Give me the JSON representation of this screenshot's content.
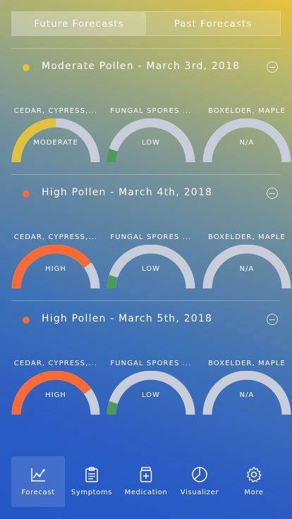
{
  "tabs": {
    "future": "Future Forecasts",
    "past": "Past Forecasts",
    "selected": "future"
  },
  "colors": {
    "moderate": "#e2c13c",
    "high": "#fb6a32",
    "low": "#4e9a5b",
    "track": "#c7ceda"
  },
  "days": [
    {
      "title": "Moderate Pollen - March 3rd, 2018",
      "dot_color": "#e2c13c",
      "gauges": [
        {
          "label": "CEDAR, CYPRESS,...",
          "level": "MODERATE",
          "fraction": 0.5,
          "color": "#e2c13c"
        },
        {
          "label": "FUNGAL SPORES ...",
          "level": "LOW",
          "fraction": 0.1,
          "color": "#4e9a5b"
        },
        {
          "label": "BOXELDER, MAPLE",
          "level": "N/A",
          "fraction": 0,
          "color": "#c7ceda"
        }
      ]
    },
    {
      "title": "High Pollen - March 4th, 2018",
      "dot_color": "#fb6a32",
      "gauges": [
        {
          "label": "CEDAR, CYPRESS,...",
          "level": "HIGH",
          "fraction": 0.8,
          "color": "#fb6a32"
        },
        {
          "label": "FUNGAL SPORES ...",
          "level": "LOW",
          "fraction": 0.1,
          "color": "#4e9a5b"
        },
        {
          "label": "BOXELDER, MAPLE",
          "level": "N/A",
          "fraction": 0,
          "color": "#c7ceda"
        }
      ]
    },
    {
      "title": "High Pollen - March 5th, 2018",
      "dot_color": "#fb6a32",
      "gauges": [
        {
          "label": "CEDAR, CYPRESS,...",
          "level": "HIGH",
          "fraction": 0.8,
          "color": "#fb6a32"
        },
        {
          "label": "FUNGAL SPORES ...",
          "level": "LOW",
          "fraction": 0.1,
          "color": "#4e9a5b"
        },
        {
          "label": "BOXELDER, MAPLE",
          "level": "N/A",
          "fraction": 0,
          "color": "#c7ceda"
        }
      ]
    }
  ],
  "tabbar": [
    {
      "label": "Forecast",
      "icon": "chart-line-icon",
      "active": true
    },
    {
      "label": "Symptoms",
      "icon": "clipboard-icon",
      "active": false
    },
    {
      "label": "Medication",
      "icon": "medicine-bottle-icon",
      "active": false
    },
    {
      "label": "Visualizer",
      "icon": "pie-chart-icon",
      "active": false
    },
    {
      "label": "More",
      "icon": "gear-icon",
      "active": false
    }
  ]
}
